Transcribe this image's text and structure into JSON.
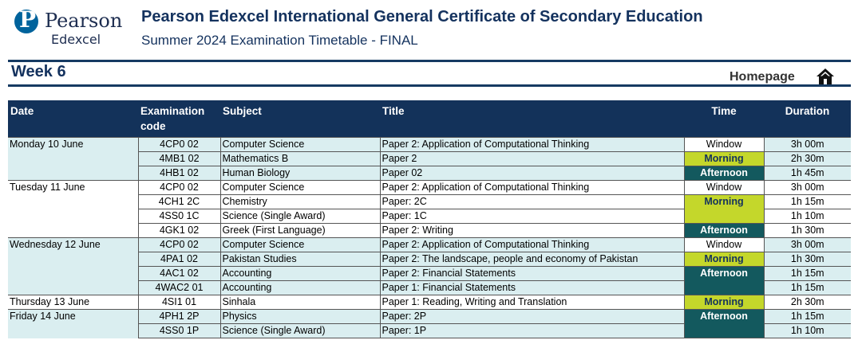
{
  "logo": {
    "line1": "Pearson",
    "line2": "Edexcel",
    "mark": "P"
  },
  "header": {
    "title": "Pearson Edexcel International General Certificate of Secondary Education",
    "subtitle": "Summer 2024 Examination Timetable - FINAL"
  },
  "week": {
    "title": "Week 6",
    "homepage_label": "Homepage",
    "home_icon": "home-icon"
  },
  "table": {
    "headers": {
      "date": "Date",
      "code": "Examination code",
      "subject": "Subject",
      "title": "Title",
      "time": "Time",
      "duration": "Duration"
    },
    "rows": [
      {
        "date": "Monday 10 June",
        "code": "4CP0 02",
        "subject": "Computer Science",
        "title": "Paper 2: Application of Computational Thinking",
        "time": "Window",
        "duration": "3h 00m"
      },
      {
        "date": "",
        "code": "4MB1 02",
        "subject": "Mathematics B",
        "title": "Paper 2",
        "time": "Morning",
        "duration": "2h 30m"
      },
      {
        "date": "",
        "code": "4HB1 02",
        "subject": "Human Biology",
        "title": "Paper 02",
        "time": "Afternoon",
        "duration": "1h 45m"
      },
      {
        "date": "Tuesday 11 June",
        "code": "4CP0 02",
        "subject": "Computer Science",
        "title": "Paper 2: Application of Computational Thinking",
        "time": "Window",
        "duration": "3h 00m"
      },
      {
        "date": "",
        "code": "4CH1 2C",
        "subject": "Chemistry",
        "title": "Paper: 2C",
        "time": "Morning",
        "duration": "1h 15m"
      },
      {
        "date": "",
        "code": "4SS0 1C",
        "subject": "Science (Single Award)",
        "title": "Paper: 1C",
        "time": "",
        "duration": "1h 10m"
      },
      {
        "date": "",
        "code": "4GK1 02",
        "subject": "Greek (First Language)",
        "title": "Paper 2: Writing",
        "time": "Afternoon",
        "duration": "1h 30m"
      },
      {
        "date": "Wednesday 12 June",
        "code": "4CP0 02",
        "subject": "Computer Science",
        "title": "Paper 2: Application of Computational Thinking",
        "time": "Window",
        "duration": "3h 00m"
      },
      {
        "date": "",
        "code": "4PA1 02",
        "subject": "Pakistan Studies",
        "title": "Paper 2: The landscape, people and economy of Pakistan",
        "time": "Morning",
        "duration": "1h 30m"
      },
      {
        "date": "",
        "code": "4AC1 02",
        "subject": "Accounting",
        "title": "Paper 2: Financial Statements",
        "time": "Afternoon",
        "duration": "1h 15m"
      },
      {
        "date": "",
        "code": "4WAC2 01",
        "subject": "Accounting",
        "title": "Paper 1: Financial Statements",
        "time": "",
        "duration": "1h 15m"
      },
      {
        "date": "Thursday 13 June",
        "code": "4SI1 01",
        "subject": "Sinhala",
        "title": "Paper 1: Reading, Writing and Translation",
        "time": "Morning",
        "duration": "2h 30m"
      },
      {
        "date": "Friday 14 June",
        "code": "4PH1 2P",
        "subject": "Physics",
        "title": "Paper: 2P",
        "time": "Afternoon",
        "duration": "1h 15m"
      },
      {
        "date": "",
        "code": "4SS0 1P",
        "subject": "Science (Single Award)",
        "title": "Paper: 1P",
        "time": "",
        "duration": "1h 10m"
      }
    ]
  },
  "colors": {
    "navy": "#13325a",
    "morning": "#c4d72b",
    "afternoon": "#13595e",
    "row_tint": "#daeef0"
  }
}
